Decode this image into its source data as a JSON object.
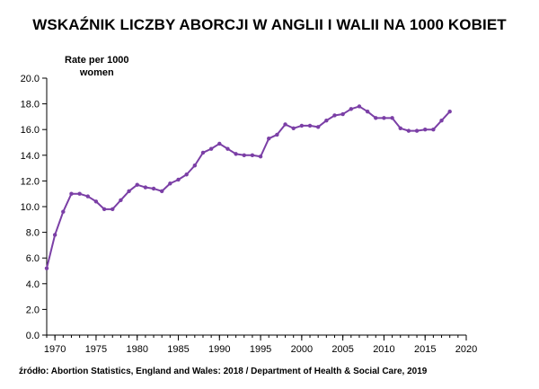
{
  "title": "WSKAŹNIK LICZBY ABORCJI W ANGLII I WALII NA 1000 KOBIET",
  "source": "źródło: Abortion Statistics, England and Wales: 2018 / Department of Health & Social Care, 2019",
  "colors": {
    "series": "#7b3fa6",
    "axis": "#000000"
  },
  "chart_data": {
    "type": "line",
    "title": "WSKAŹNIK LICZBY ABORCJI W ANGLII I WALII NA 1000 KOBIET",
    "ylabel_lines": [
      "Rate per 1000",
      "women"
    ],
    "xlabel": "",
    "xlim": [
      1969,
      2020
    ],
    "ylim": [
      0,
      20
    ],
    "xticks": [
      1970,
      1975,
      1980,
      1985,
      1990,
      1995,
      2000,
      2005,
      2010,
      2015,
      2020
    ],
    "yticks": [
      "0.0",
      "2.0",
      "4.0",
      "6.0",
      "8.0",
      "10.0",
      "12.0",
      "14.0",
      "16.0",
      "18.0",
      "20.0"
    ],
    "grid": false,
    "series": [
      {
        "name": "Rate per 1000 women",
        "x": [
          1969,
          1970,
          1971,
          1972,
          1973,
          1974,
          1975,
          1976,
          1977,
          1978,
          1979,
          1980,
          1981,
          1982,
          1983,
          1984,
          1985,
          1986,
          1987,
          1988,
          1989,
          1990,
          1991,
          1992,
          1993,
          1994,
          1995,
          1996,
          1997,
          1998,
          1999,
          2000,
          2001,
          2002,
          2003,
          2004,
          2005,
          2006,
          2007,
          2008,
          2009,
          2010,
          2011,
          2012,
          2013,
          2014,
          2015,
          2016,
          2017,
          2018
        ],
        "values": [
          5.2,
          7.8,
          9.6,
          11.0,
          11.0,
          10.8,
          10.4,
          9.8,
          9.8,
          10.5,
          11.2,
          11.7,
          11.5,
          11.4,
          11.2,
          11.8,
          12.1,
          12.5,
          13.2,
          14.2,
          14.5,
          14.9,
          14.5,
          14.1,
          14.0,
          14.0,
          13.9,
          15.3,
          15.6,
          16.4,
          16.1,
          16.3,
          16.3,
          16.2,
          16.7,
          17.1,
          17.2,
          17.6,
          17.8,
          17.4,
          16.9,
          16.9,
          16.9,
          16.1,
          15.9,
          15.9,
          16.0,
          16.0,
          16.7,
          17.4
        ]
      }
    ]
  }
}
